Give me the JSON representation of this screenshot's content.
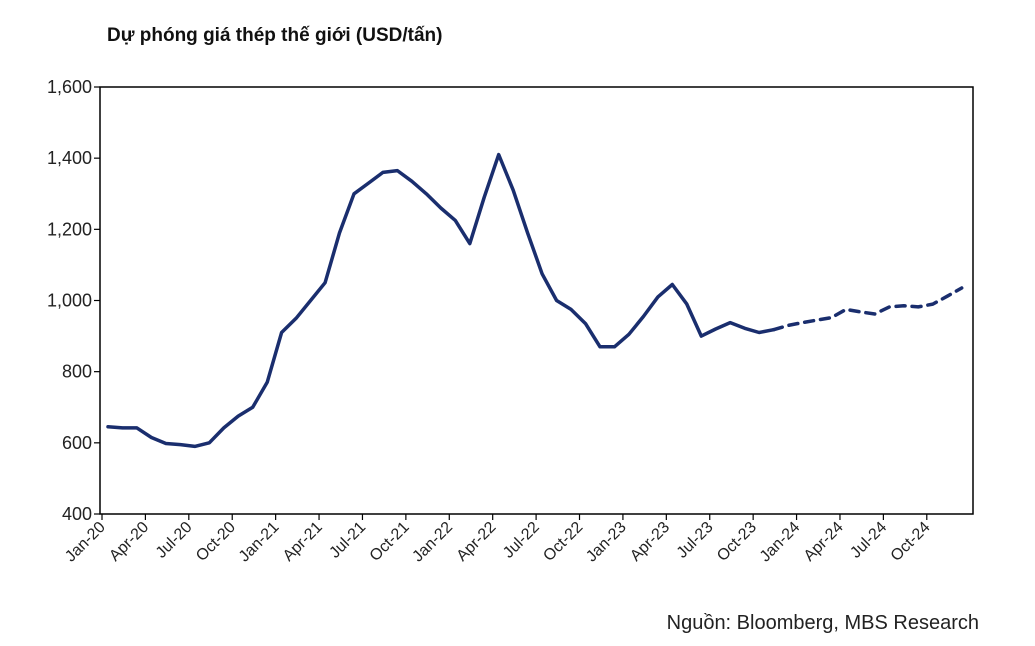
{
  "title": "Dự phóng giá thép thế giới (USD/tấn)",
  "source": "Nguồn: Bloomberg, MBS Research",
  "chart_data": {
    "type": "line",
    "title": "Dự phóng giá thép thế giới (USD/tấn)",
    "xlabel": "",
    "ylabel": "",
    "ylim": [
      400,
      1600
    ],
    "y_ticks": [
      400,
      600,
      800,
      1000,
      1200,
      1400,
      1600
    ],
    "y_tick_labels": [
      "400",
      "600",
      "800",
      "1,000",
      "1,200",
      "1,400",
      "1,600"
    ],
    "x_tick_labels": [
      "Jan-20",
      "Apr-20",
      "Jul-20",
      "Oct-20",
      "Jan-21",
      "Apr-21",
      "Jul-21",
      "Oct-21",
      "Jan-22",
      "Apr-22",
      "Jul-22",
      "Oct-22",
      "Jan-23",
      "Apr-23",
      "Jul-23",
      "Oct-23",
      "Jan-24",
      "Apr-24",
      "Jul-24",
      "Oct-24"
    ],
    "grid": false,
    "legend": "none",
    "color": "#1a2e6e",
    "series": [
      {
        "style": "solid",
        "x": [
          "Jan-20",
          "Feb-20",
          "Mar-20",
          "Apr-20",
          "May-20",
          "Jun-20",
          "Jul-20",
          "Aug-20",
          "Sep-20",
          "Oct-20",
          "Nov-20",
          "Dec-20",
          "Jan-21",
          "Feb-21",
          "Mar-21",
          "Apr-21",
          "May-21",
          "Jun-21",
          "Jul-21",
          "Aug-21",
          "Sep-21",
          "Oct-21",
          "Nov-21",
          "Dec-21",
          "Jan-22",
          "Feb-22",
          "Mar-22",
          "Apr-22",
          "May-22",
          "Jun-22",
          "Jul-22",
          "Aug-22",
          "Sep-22",
          "Oct-22",
          "Nov-22",
          "Dec-22",
          "Jan-23",
          "Feb-23",
          "Mar-23",
          "Apr-23",
          "May-23",
          "Jun-23",
          "Jul-23",
          "Aug-23",
          "Sep-23",
          "Oct-23",
          "Nov-23"
        ],
        "values": [
          645,
          642,
          642,
          615,
          598,
          595,
          590,
          600,
          642,
          675,
          700,
          770,
          910,
          950,
          1000,
          1050,
          1190,
          1300,
          1330,
          1360,
          1365,
          1335,
          1300,
          1260,
          1225,
          1160,
          1290,
          1410,
          1310,
          1190,
          1075,
          1000,
          975,
          935,
          870,
          870,
          905,
          955,
          1010,
          1045,
          990,
          900,
          920,
          938,
          922,
          910,
          918
        ]
      },
      {
        "style": "dashed",
        "x": [
          "Nov-23",
          "Dec-23",
          "Jan-24",
          "Feb-24",
          "Mar-24",
          "Apr-24",
          "May-24",
          "Jun-24",
          "Jul-24",
          "Aug-24",
          "Sep-24",
          "Oct-24",
          "Nov-24",
          "Dec-24"
        ],
        "values": [
          918,
          930,
          938,
          945,
          952,
          975,
          968,
          962,
          982,
          985,
          982,
          990,
          1012,
          1035
        ]
      }
    ]
  }
}
